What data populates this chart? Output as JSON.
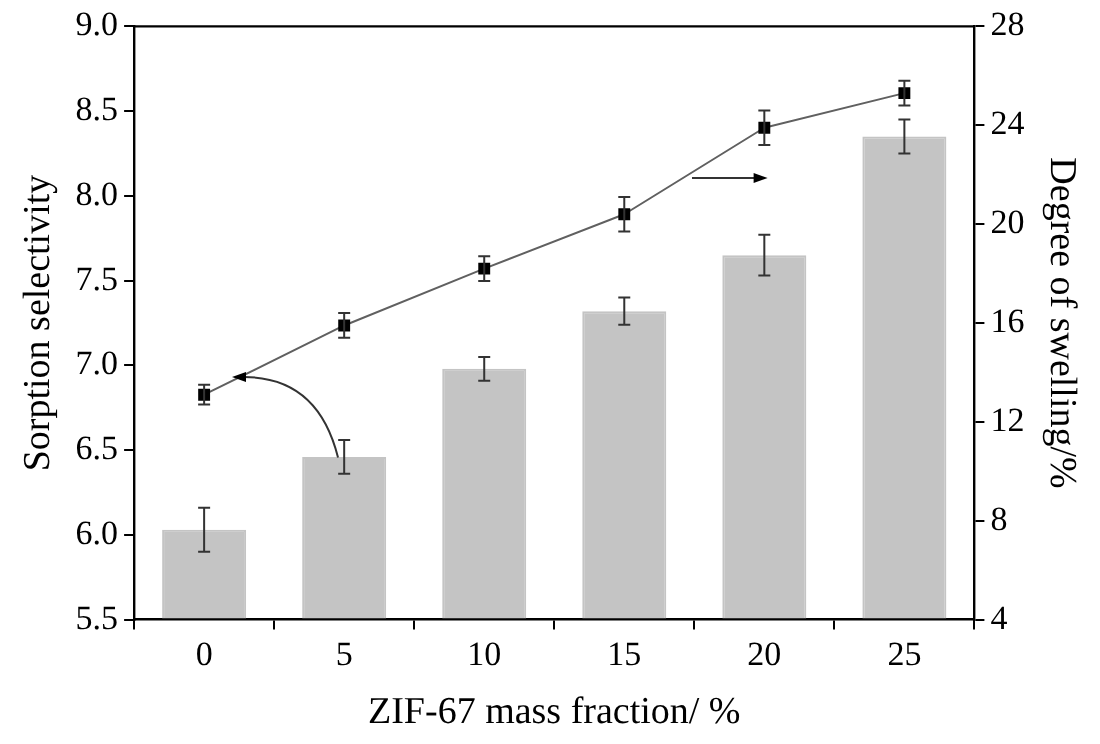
{
  "chart_data": {
    "type": "bar",
    "xlabel": "ZIF-67 mass fraction/ %",
    "ylabel": "Sorption selectivity",
    "y2label": "Degree of swelling/%",
    "categories": [
      "0",
      "5",
      "10",
      "15",
      "20",
      "25"
    ],
    "series": [
      {
        "color": "#c4c4c4",
        "values": [
          6.03,
          6.46,
          6.98,
          7.32,
          7.65,
          8.35
        ],
        "errors": [
          0.13,
          0.1,
          0.07,
          0.08,
          0.12,
          0.1
        ]
      },
      {
        "type": "line",
        "axis": "y2",
        "color": "#606060",
        "marker": "square",
        "values": [
          13.1,
          15.9,
          18.2,
          20.4,
          23.9,
          25.3
        ],
        "errors": [
          0.4,
          0.5,
          0.5,
          0.7,
          0.7,
          0.5
        ]
      }
    ],
    "ylim": [
      5.5,
      9.0
    ],
    "yticks": [
      {
        "value": 5.5,
        "label": "5.5"
      },
      {
        "value": 6,
        "label": "6.0"
      },
      {
        "value": 6.5,
        "label": "6.5"
      },
      {
        "value": 7,
        "label": "7.0"
      },
      {
        "value": 7.5,
        "label": "7.5"
      },
      {
        "value": 8,
        "label": "8.0"
      },
      {
        "value": 8.5,
        "label": "8.5"
      },
      {
        "value": 9,
        "label": "9.0"
      }
    ],
    "y2lim": [
      4,
      28
    ],
    "y2ticks": [
      4,
      8,
      12,
      16,
      20,
      24,
      28
    ],
    "grid": false,
    "legend": false
  }
}
